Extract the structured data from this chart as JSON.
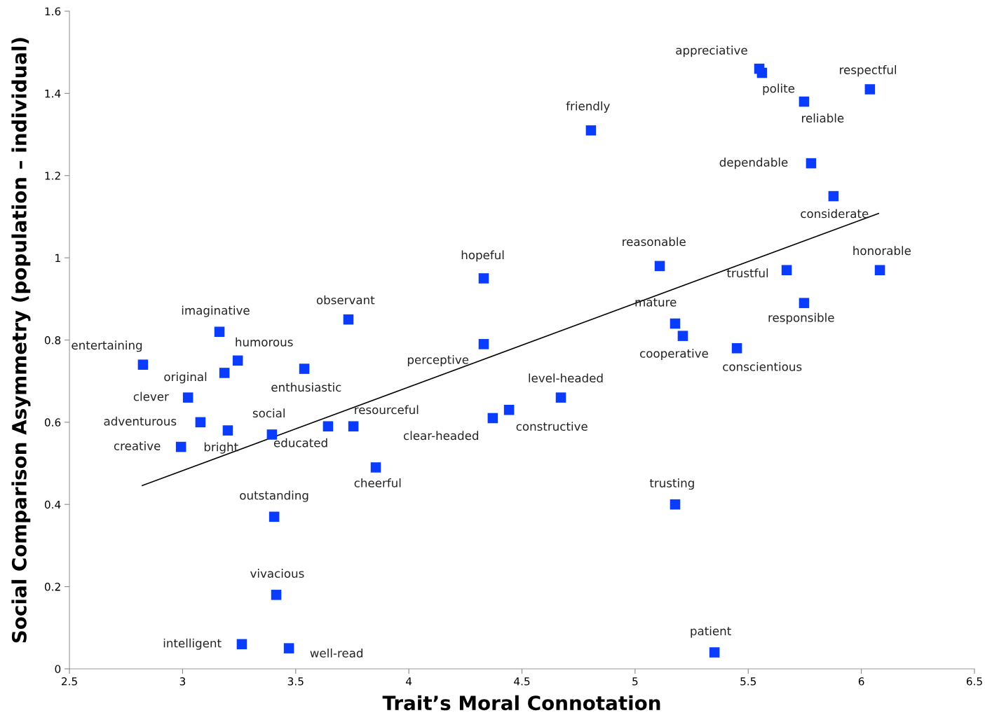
{
  "chart_data": {
    "type": "scatter",
    "xlabel": "Trait’s Moral Connotation",
    "ylabel": "Social Comparison Asymmetry (population – individual)",
    "xlim": [
      2.5,
      6.5
    ],
    "xticks": [
      2.5,
      3,
      3.5,
      4,
      4.5,
      5,
      5.5,
      6,
      6.5
    ],
    "ylim": [
      0,
      1.6
    ],
    "yticks": [
      0,
      0.2,
      0.4,
      0.6,
      0.8,
      1,
      1.2,
      1.4,
      1.6
    ],
    "grid": false,
    "legend": false,
    "series": [
      {
        "marker": "square",
        "color": "#0a3cff",
        "x": [
          2.825,
          3.163,
          3.244,
          3.185,
          3.024,
          3.079,
          2.993,
          3.2,
          3.395,
          3.538,
          3.733,
          3.643,
          3.755,
          3.854,
          3.405,
          3.414,
          3.262,
          3.47,
          4.331,
          4.331,
          4.371,
          4.443,
          4.672,
          4.805,
          5.109,
          5.177,
          5.211,
          5.177,
          5.351,
          5.45,
          5.549,
          5.561,
          5.747,
          6.038,
          5.778,
          5.877,
          5.67,
          5.747,
          6.082
        ],
        "values": [
          0.74,
          0.82,
          0.75,
          0.72,
          0.66,
          0.6,
          0.54,
          0.58,
          0.57,
          0.73,
          0.85,
          0.59,
          0.59,
          0.49,
          0.37,
          0.18,
          0.06,
          0.05,
          0.95,
          0.79,
          0.61,
          0.63,
          0.66,
          1.31,
          0.98,
          0.84,
          0.81,
          0.4,
          0.04,
          0.78,
          1.46,
          1.45,
          1.38,
          1.41,
          1.23,
          1.15,
          0.97,
          0.89,
          0.97
        ]
      },
      {
        "type": "line",
        "marker": "none",
        "color": "#000000",
        "x": [
          2.822,
          6.076
        ],
        "values": [
          0.446,
          1.108
        ]
      }
    ],
    "annotations": [
      {
        "text": "entertaining",
        "x": 2.825,
        "y": 0.74
      },
      {
        "text": "imaginative",
        "x": 3.163,
        "y": 0.82
      },
      {
        "text": "humorous",
        "x": 3.244,
        "y": 0.75
      },
      {
        "text": "original",
        "x": 3.185,
        "y": 0.72
      },
      {
        "text": "clever",
        "x": 3.024,
        "y": 0.66
      },
      {
        "text": "adventurous",
        "x": 3.079,
        "y": 0.6
      },
      {
        "text": "creative",
        "x": 2.993,
        "y": 0.54
      },
      {
        "text": "bright",
        "x": 3.2,
        "y": 0.58
      },
      {
        "text": "social",
        "x": 3.395,
        "y": 0.57
      },
      {
        "text": "enthusiastic",
        "x": 3.538,
        "y": 0.73
      },
      {
        "text": "observant",
        "x": 3.733,
        "y": 0.85
      },
      {
        "text": "educated",
        "x": 3.643,
        "y": 0.59
      },
      {
        "text": "resourceful",
        "x": 3.755,
        "y": 0.59
      },
      {
        "text": "cheerful",
        "x": 3.854,
        "y": 0.49
      },
      {
        "text": "outstanding",
        "x": 3.405,
        "y": 0.37
      },
      {
        "text": "vivacious",
        "x": 3.414,
        "y": 0.18
      },
      {
        "text": "intelligent",
        "x": 3.262,
        "y": 0.06
      },
      {
        "text": "well-read",
        "x": 3.47,
        "y": 0.05
      },
      {
        "text": "hopeful",
        "x": 4.331,
        "y": 0.95
      },
      {
        "text": "perceptive",
        "x": 4.331,
        "y": 0.79
      },
      {
        "text": "clear-headed",
        "x": 4.371,
        "y": 0.61
      },
      {
        "text": "constructive",
        "x": 4.443,
        "y": 0.63
      },
      {
        "text": "level-headed",
        "x": 4.672,
        "y": 0.66
      },
      {
        "text": "friendly",
        "x": 4.805,
        "y": 1.31
      },
      {
        "text": "reasonable",
        "x": 5.109,
        "y": 0.98
      },
      {
        "text": "mature",
        "x": 5.177,
        "y": 0.84
      },
      {
        "text": "cooperative",
        "x": 5.211,
        "y": 0.81
      },
      {
        "text": "trusting",
        "x": 5.177,
        "y": 0.4
      },
      {
        "text": "patient",
        "x": 5.351,
        "y": 0.04
      },
      {
        "text": "conscientious",
        "x": 5.45,
        "y": 0.78
      },
      {
        "text": "appreciative",
        "x": 5.549,
        "y": 1.46
      },
      {
        "text": "polite",
        "x": 5.561,
        "y": 1.45
      },
      {
        "text": "reliable",
        "x": 5.747,
        "y": 1.38
      },
      {
        "text": "respectful",
        "x": 6.038,
        "y": 1.41
      },
      {
        "text": "dependable",
        "x": 5.778,
        "y": 1.23
      },
      {
        "text": "considerate",
        "x": 5.877,
        "y": 1.15
      },
      {
        "text": "trustful",
        "x": 5.67,
        "y": 0.97
      },
      {
        "text": "responsible",
        "x": 5.747,
        "y": 0.89
      },
      {
        "text": "honorable",
        "x": 6.082,
        "y": 0.97
      }
    ]
  }
}
